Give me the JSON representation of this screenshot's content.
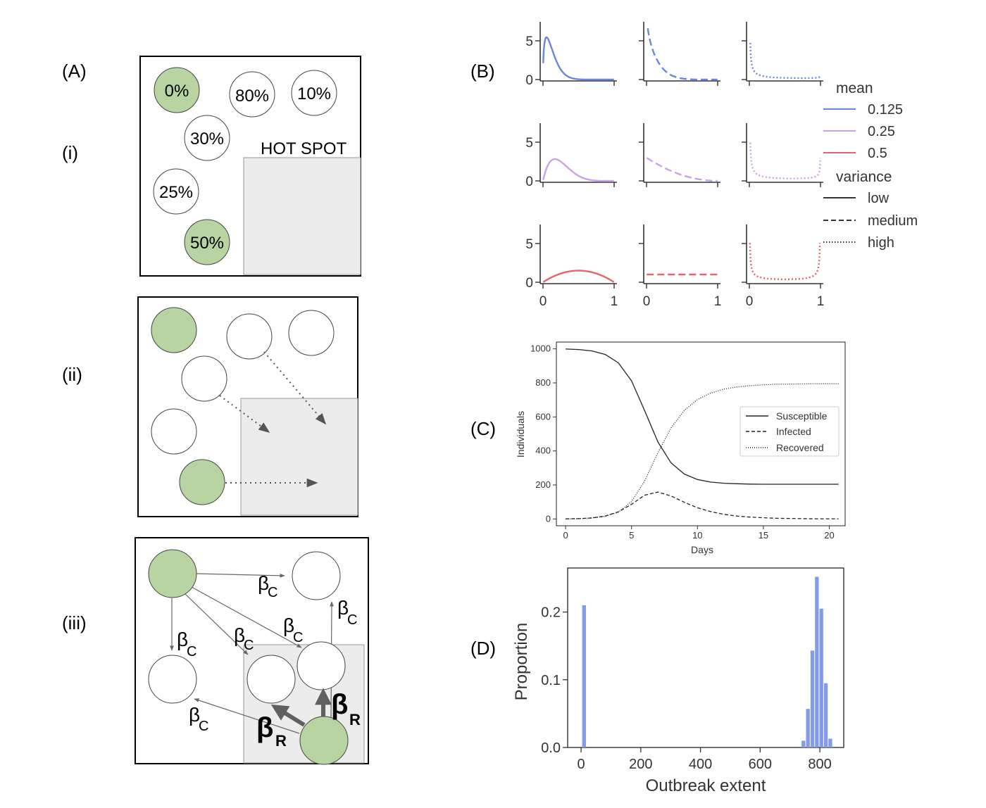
{
  "panel_labels": {
    "A": "(A)",
    "i": "(i)",
    "ii": "(ii)",
    "iii": "(iii)",
    "B": "(B)",
    "C": "(C)",
    "D": "(D)"
  },
  "panel_a_i": {
    "hotspot_label": "HOT SPOT",
    "circles": [
      {
        "label": "0%",
        "infected": true
      },
      {
        "label": "80%",
        "infected": false
      },
      {
        "label": "10%",
        "infected": false
      },
      {
        "label": "30%",
        "infected": false
      },
      {
        "label": "25%",
        "infected": false
      },
      {
        "label": "50%",
        "infected": true
      }
    ]
  },
  "panel_a_iii": {
    "beta_c_symbol": "β",
    "beta_c_sub": "C",
    "beta_r_symbol": "β",
    "beta_r_sub": "R"
  },
  "colors": {
    "infected_fill": "#b8d4a2",
    "hotspot_fill": "#ececec",
    "mean_0125": "#6b86e0",
    "mean_025": "#c9a3ea",
    "mean_05": "#e8636e",
    "bar_color": "#7d97e6"
  },
  "chart_data": [
    {
      "type": "line",
      "panel": "B",
      "description_rows": [
        "mean 0.125",
        "mean 0.25",
        "mean 0.5"
      ],
      "description_cols": [
        "low",
        "medium",
        "high"
      ],
      "y_ticks": [
        "0",
        "5"
      ],
      "x_ticks": [
        "0",
        "1"
      ],
      "legend": {
        "mean_title": "mean",
        "means": [
          "0.125",
          "0.25",
          "0.5"
        ],
        "variance_title": "variance",
        "variances": [
          "low",
          "medium",
          "high"
        ]
      }
    },
    {
      "type": "line",
      "panel": "C",
      "xlabel": "Days",
      "ylabel": "Individuals",
      "x_ticks": [
        "0",
        "5",
        "10",
        "15",
        "20"
      ],
      "y_ticks": [
        "0",
        "200",
        "400",
        "600",
        "800",
        "1000"
      ],
      "xlim": [
        -0.7,
        21.2
      ],
      "ylim": [
        -40,
        1040
      ],
      "series": [
        {
          "name": "Susceptible",
          "x": [
            0,
            1,
            2,
            3,
            4,
            5,
            6,
            7,
            8,
            9,
            10,
            11,
            12,
            13,
            14,
            15,
            16,
            17,
            18,
            19,
            20,
            20.7
          ],
          "values": [
            999,
            996,
            988,
            967,
            918,
            812,
            636,
            452,
            329,
            264,
            232,
            217,
            210,
            207,
            205,
            204,
            204,
            204,
            204,
            204,
            204,
            204
          ]
        },
        {
          "name": "Infected",
          "x": [
            0,
            1,
            2,
            3,
            4,
            5,
            6,
            7,
            8,
            9,
            10,
            11,
            12,
            13,
            14,
            15,
            16,
            17,
            18,
            19,
            20,
            20.7
          ],
          "values": [
            1,
            2,
            6,
            17,
            42,
            86,
            140,
            158,
            135,
            98,
            66,
            43,
            27,
            17,
            11,
            7,
            4,
            3,
            2,
            1,
            1,
            1
          ]
        },
        {
          "name": "Recovered",
          "x": [
            0,
            1,
            2,
            3,
            4,
            5,
            6,
            7,
            8,
            9,
            10,
            11,
            12,
            13,
            14,
            15,
            16,
            17,
            18,
            19,
            20,
            20.7
          ],
          "values": [
            0,
            2,
            6,
            16,
            40,
            102,
            224,
            390,
            536,
            638,
            702,
            740,
            763,
            776,
            784,
            789,
            792,
            793,
            794,
            795,
            795,
            795
          ]
        }
      ]
    },
    {
      "type": "bar",
      "panel": "D",
      "xlabel": "Outbreak extent",
      "ylabel": "Proportion",
      "x_ticks": [
        "0",
        "200",
        "400",
        "600",
        "800"
      ],
      "y_ticks": [
        "0.0",
        "0.1",
        "0.2"
      ],
      "xlim": [
        -45,
        880
      ],
      "ylim": [
        0,
        0.265
      ],
      "bins": [
        {
          "x": 10,
          "value": 0.21
        },
        {
          "x": 745,
          "value": 0.01
        },
        {
          "x": 760,
          "value": 0.057
        },
        {
          "x": 775,
          "value": 0.143
        },
        {
          "x": 790,
          "value": 0.252
        },
        {
          "x": 805,
          "value": 0.205
        },
        {
          "x": 820,
          "value": 0.095
        },
        {
          "x": 835,
          "value": 0.013
        }
      ]
    }
  ]
}
